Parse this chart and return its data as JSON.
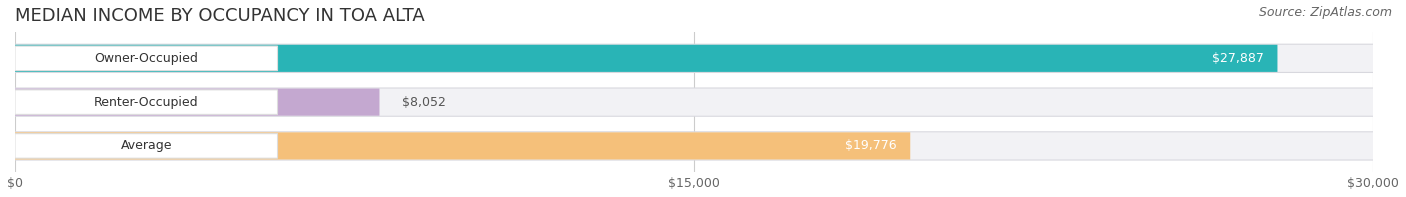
{
  "title": "MEDIAN INCOME BY OCCUPANCY IN TOA ALTA",
  "source": "Source: ZipAtlas.com",
  "categories": [
    "Owner-Occupied",
    "Renter-Occupied",
    "Average"
  ],
  "values": [
    27887,
    8052,
    19776
  ],
  "bar_colors": [
    "#29b4b6",
    "#c4a8d0",
    "#f5c07a"
  ],
  "value_labels": [
    "$27,887",
    "$8,052",
    "$19,776"
  ],
  "label_inside": [
    true,
    false,
    true
  ],
  "xlim": [
    0,
    30000
  ],
  "xticks": [
    0,
    15000,
    30000
  ],
  "xticklabels": [
    "$0",
    "$15,000",
    "$30,000"
  ],
  "title_fontsize": 13,
  "source_fontsize": 9,
  "label_fontsize": 9,
  "bar_height": 0.62,
  "background_color": "#ffffff",
  "bar_bg_color": "#e8e8ec",
  "bar_bg_border": "#d8d8de"
}
